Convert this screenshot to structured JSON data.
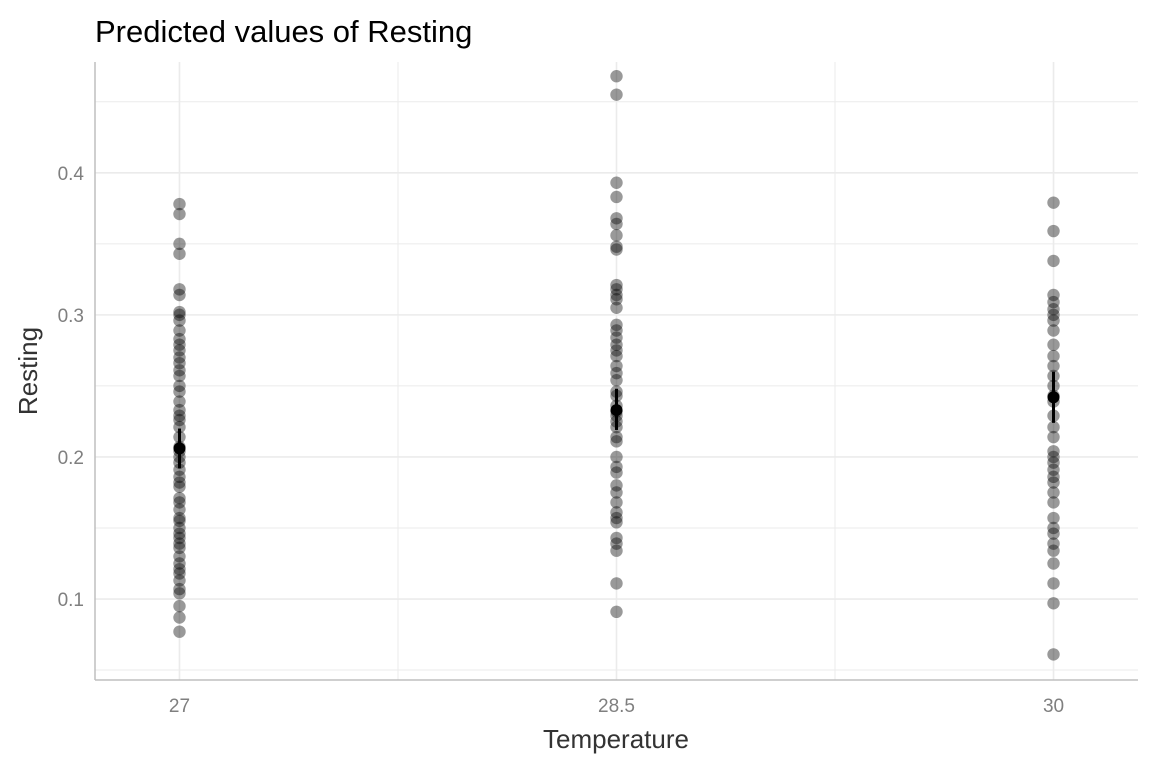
{
  "chart_data": {
    "type": "scatter",
    "title": "Predicted values of Resting",
    "xlabel": "Temperature",
    "ylabel": "Resting",
    "x_ticks": [
      "27",
      "28.5",
      "30"
    ],
    "y_ticks": [
      "0.1",
      "0.2",
      "0.3",
      "0.4"
    ],
    "x_range": [
      26.71,
      30.29
    ],
    "y_range": [
      0.043,
      0.478
    ],
    "grid": true,
    "colors": {
      "raw_points": "#000000",
      "predicted": "#000000",
      "grid": "#ebebeb",
      "axis": "#bfbfbf"
    },
    "raw_points": [
      {
        "x": 27,
        "y": [
          0.378,
          0.371,
          0.35,
          0.343,
          0.318,
          0.314,
          0.302,
          0.3,
          0.296,
          0.289,
          0.283,
          0.279,
          0.275,
          0.27,
          0.266,
          0.261,
          0.257,
          0.25,
          0.246,
          0.239,
          0.233,
          0.229,
          0.226,
          0.221,
          0.214,
          0.207,
          0.204,
          0.2,
          0.196,
          0.191,
          0.186,
          0.182,
          0.179,
          0.171,
          0.168,
          0.163,
          0.157,
          0.155,
          0.15,
          0.146,
          0.143,
          0.139,
          0.136,
          0.13,
          0.125,
          0.121,
          0.118,
          0.113,
          0.107,
          0.104,
          0.095,
          0.087,
          0.077
        ]
      },
      {
        "x": 28.5,
        "y": [
          0.468,
          0.455,
          0.393,
          0.383,
          0.368,
          0.364,
          0.356,
          0.348,
          0.346,
          0.321,
          0.318,
          0.314,
          0.311,
          0.305,
          0.293,
          0.289,
          0.284,
          0.279,
          0.275,
          0.271,
          0.264,
          0.259,
          0.254,
          0.246,
          0.243,
          0.236,
          0.232,
          0.229,
          0.225,
          0.221,
          0.214,
          0.211,
          0.2,
          0.193,
          0.189,
          0.18,
          0.175,
          0.168,
          0.161,
          0.157,
          0.154,
          0.143,
          0.139,
          0.134,
          0.111,
          0.091
        ]
      },
      {
        "x": 30,
        "y": [
          0.379,
          0.359,
          0.338,
          0.314,
          0.309,
          0.304,
          0.3,
          0.296,
          0.289,
          0.279,
          0.271,
          0.264,
          0.257,
          0.25,
          0.243,
          0.239,
          0.229,
          0.221,
          0.214,
          0.204,
          0.2,
          0.196,
          0.191,
          0.186,
          0.182,
          0.175,
          0.168,
          0.157,
          0.15,
          0.146,
          0.139,
          0.134,
          0.125,
          0.111,
          0.097,
          0.061
        ]
      }
    ],
    "predicted": [
      {
        "x": 27,
        "y": 0.206,
        "ci": [
          0.192,
          0.22
        ]
      },
      {
        "x": 28.5,
        "y": 0.233,
        "ci": [
          0.219,
          0.248
        ]
      },
      {
        "x": 30,
        "y": 0.242,
        "ci": [
          0.224,
          0.26
        ]
      }
    ]
  }
}
